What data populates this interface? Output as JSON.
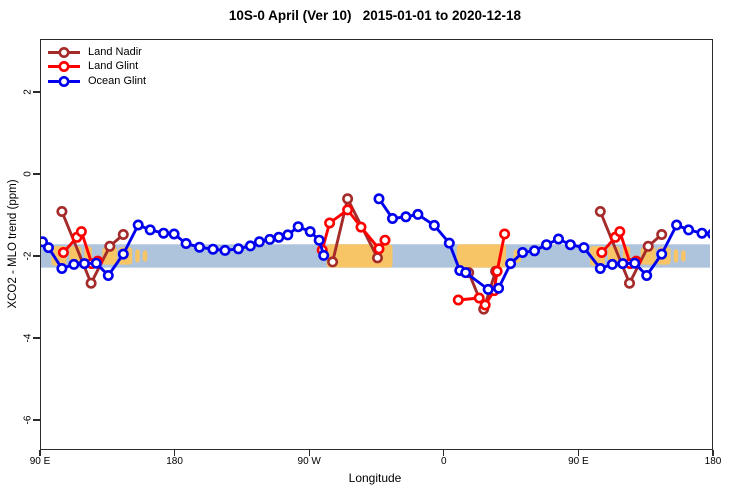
{
  "title": "10S-0 April (Ver 10)   2015-01-01 to 2020-12-18",
  "legend": {
    "items": [
      {
        "label": "Land Nadir",
        "color": "#A52A2A"
      },
      {
        "label": "Land Glint",
        "color": "#FF0000"
      },
      {
        "label": "Ocean Glint",
        "color": "#0000EE"
      }
    ]
  },
  "axes": {
    "xlabel": "Longitude",
    "ylabel": "XCO2 - MLO trend (ppm)",
    "x_ticks": [
      {
        "pos": 90,
        "label": "90 E"
      },
      {
        "pos": 180,
        "label": "180"
      },
      {
        "pos": 270,
        "label": "90 W"
      },
      {
        "pos": 360,
        "label": "0"
      },
      {
        "pos": 450,
        "label": "90 E"
      },
      {
        "pos": 540,
        "label": "180"
      }
    ],
    "y_ticks": [
      {
        "val": 2,
        "label": "2"
      },
      {
        "val": 0,
        "label": "0"
      },
      {
        "val": -2,
        "label": "-2"
      },
      {
        "val": -4,
        "label": "-4"
      },
      {
        "val": -6,
        "label": "-6"
      }
    ]
  },
  "chart_data": {
    "type": "line",
    "title": "10S-0 April (Ver 10)   2015-01-01 to 2020-12-18",
    "xlabel": "Longitude",
    "ylabel": "XCO2 - MLO trend (ppm)",
    "axis_note": "x axis spans 450 degrees of longitude: 90E -> 180 -> 90W -> 0 -> 90E -> 180; x values below are degrees east of Greenwich, continuing past 360 for the repeated 90E-180 section",
    "xlim": [
      90,
      540
    ],
    "ylim": [
      -6.73,
      3.32
    ],
    "grid": false,
    "legend_position": "top-left, no box",
    "background_band": {
      "meaning": "10S-0 latitude strip map: ocean blue band with orange land masses, spanning y -1.7 to -2.3",
      "y_from": -2.26,
      "y_to": -1.69,
      "ocean_color": "#AEC3DC",
      "land_color": "#F7C566",
      "land_segments": [
        [
          97,
          107,
          2
        ],
        [
          109,
          117,
          2
        ],
        [
          119,
          124,
          2
        ],
        [
          131,
          141,
          3
        ],
        [
          142,
          151,
          3
        ],
        [
          153,
          156,
          5
        ],
        [
          158,
          161,
          6
        ],
        [
          281,
          325,
          0
        ],
        [
          368,
          401,
          0
        ],
        [
          406,
          411,
          5
        ],
        [
          457,
          467,
          2
        ],
        [
          469,
          477,
          2
        ],
        [
          479,
          484,
          2
        ],
        [
          491,
          501,
          3
        ],
        [
          502,
          511,
          3
        ],
        [
          513,
          516,
          5
        ],
        [
          518,
          521,
          6
        ]
      ]
    },
    "series": [
      {
        "name": "Land Nadir",
        "color": "#A52A2A",
        "segments": [
          [
            [
              104,
              -0.89
            ],
            [
              123.5,
              -2.64
            ],
            [
              136,
              -1.74
            ],
            [
              145,
              -1.45
            ]
          ],
          [
            [
              285,
              -2.12
            ],
            [
              295,
              -0.58
            ],
            [
              315,
              -2.02
            ]
          ],
          [
            [
              376,
              -2.38
            ],
            [
              386,
              -3.27
            ],
            [
              394,
              -2.35
            ]
          ],
          [
            [
              464,
              -0.89
            ],
            [
              483.5,
              -2.64
            ],
            [
              496,
              -1.74
            ],
            [
              505,
              -1.45
            ]
          ]
        ]
      },
      {
        "name": "Land Glint",
        "color": "#FF0000",
        "segments": [
          [
            [
              105,
              -1.89
            ],
            [
              114,
              -1.52
            ],
            [
              117,
              -1.38
            ],
            [
              124,
              -2.16
            ],
            [
              128,
              -2.1
            ]
          ],
          [
            [
              278,
              -1.83
            ],
            [
              283,
              -1.17
            ],
            [
              295,
              -0.85
            ],
            [
              304,
              -1.27
            ],
            [
              316,
              -1.8
            ],
            [
              320,
              -1.59
            ]
          ],
          [
            [
              369,
              -3.05
            ],
            [
              383,
              -3.0
            ],
            [
              387,
              -3.17
            ],
            [
              393,
              -2.82
            ],
            [
              395,
              -2.35
            ],
            [
              400,
              -1.44
            ]
          ],
          [
            [
              465,
              -1.89
            ],
            [
              474,
              -1.52
            ],
            [
              477,
              -1.38
            ],
            [
              484,
              -2.16
            ],
            [
              488,
              -2.1
            ]
          ]
        ]
      },
      {
        "name": "Ocean Glint",
        "color": "#0000EE",
        "segments": [
          [
            [
              91,
              -1.63
            ],
            [
              95,
              -1.77
            ],
            [
              104,
              -2.28
            ],
            [
              112,
              -2.18
            ],
            [
              119,
              -2.16
            ],
            [
              127,
              -2.15
            ],
            [
              135,
              -2.45
            ],
            [
              145,
              -1.93
            ],
            [
              155,
              -1.22
            ],
            [
              163,
              -1.34
            ],
            [
              172,
              -1.42
            ],
            [
              179,
              -1.44
            ],
            [
              187,
              -1.67
            ],
            [
              196,
              -1.76
            ],
            [
              205,
              -1.81
            ],
            [
              213,
              -1.84
            ],
            [
              222,
              -1.8
            ],
            [
              230,
              -1.73
            ],
            [
              236,
              -1.63
            ],
            [
              243,
              -1.57
            ],
            [
              249,
              -1.52
            ],
            [
              255,
              -1.46
            ],
            [
              262,
              -1.26
            ],
            [
              270,
              -1.38
            ],
            [
              276,
              -1.59
            ],
            [
              279,
              -1.96
            ]
          ],
          [
            [
              316,
              -0.58
            ],
            [
              325,
              -1.06
            ],
            [
              334,
              -1.02
            ],
            [
              342,
              -0.96
            ],
            [
              353,
              -1.23
            ],
            [
              363,
              -1.66
            ],
            [
              370,
              -2.33
            ],
            [
              374,
              -2.38
            ],
            [
              389,
              -2.79
            ],
            [
              396,
              -2.76
            ],
            [
              404,
              -2.16
            ],
            [
              412,
              -1.89
            ],
            [
              420,
              -1.85
            ],
            [
              428,
              -1.7
            ],
            [
              436,
              -1.56
            ],
            [
              444,
              -1.7
            ],
            [
              453,
              -1.77
            ],
            [
              464,
              -2.28
            ],
            [
              472,
              -2.18
            ],
            [
              479,
              -2.16
            ],
            [
              487,
              -2.15
            ],
            [
              495,
              -2.45
            ],
            [
              505,
              -1.93
            ],
            [
              515,
              -1.22
            ],
            [
              523,
              -1.34
            ],
            [
              532,
              -1.42
            ],
            [
              539,
              -1.44
            ]
          ]
        ]
      }
    ]
  }
}
